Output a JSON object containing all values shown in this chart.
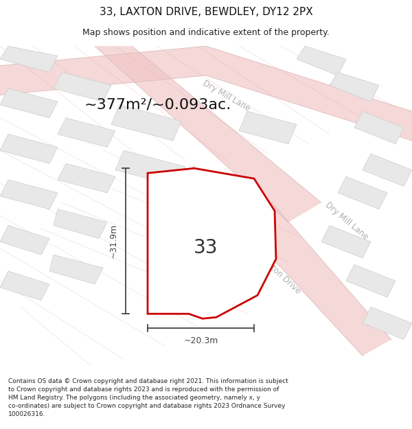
{
  "title": "33, LAXTON DRIVE, BEWDLEY, DY12 2PX",
  "subtitle": "Map shows position and indicative extent of the property.",
  "area_label": "~377m²/~0.093ac.",
  "number_label": "33",
  "dim_width": "~20.3m",
  "dim_height": "~31.9m",
  "footer": "Contains OS data © Crown copyright and database right 2021. This information is subject to Crown copyright and database rights 2023 and is reproduced with the permission of HM Land Registry. The polygons (including the associated geometry, namely x, y co-ordinates) are subject to Crown copyright and database rights 2023 Ordnance Survey 100026316.",
  "bg_color": "#ffffff",
  "map_bg": "#ffffff",
  "road_color": "#f2c8c8",
  "block_color": "#e8e8e8",
  "block_edge_color": "#cccccc",
  "plot_fill": "#f5f0f0",
  "plot_edge_color": "#cc0000",
  "road_label_color": "#b0b0b0",
  "parcel_line_color": "#ddbbbb",
  "dim_color": "#444444",
  "title_fontsize": 11,
  "subtitle_fontsize": 9,
  "area_fontsize": 16,
  "number_fontsize": 20,
  "dim_fontsize": 9,
  "road_fontsize": 8.5,
  "footer_fontsize": 6.5
}
